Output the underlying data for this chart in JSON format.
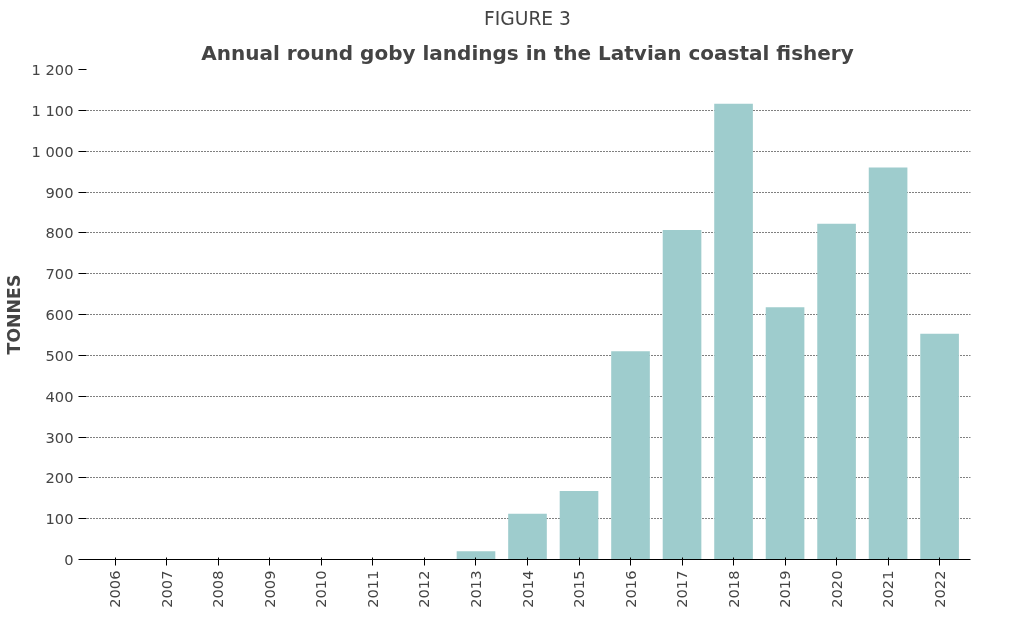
{
  "chart_data": {
    "type": "bar",
    "title": "FIGURE 3",
    "subtitle": "Annual round goby landings in the Latvian coastal fishery",
    "ylabel": "TONNES",
    "categories": [
      "2006",
      "2007",
      "2008",
      "2009",
      "2010",
      "2011",
      "2012",
      "2013",
      "2014",
      "2015",
      "2016",
      "2017",
      "2018",
      "2019",
      "2020",
      "2021",
      "2022"
    ],
    "values": [
      0,
      0,
      0,
      0,
      0,
      0,
      0,
      20,
      112,
      168,
      510,
      807,
      1116,
      618,
      822,
      960,
      553
    ],
    "color": "#9ecccd",
    "ylim": [
      0,
      1200
    ],
    "yticks": [
      0,
      100,
      200,
      300,
      400,
      500,
      600,
      700,
      800,
      900,
      {
        "value": 1000,
        "label": "1 000"
      },
      {
        "value": 1100,
        "label": "1 100"
      },
      {
        "value": 1200,
        "label": "1 200"
      }
    ],
    "grid": "y"
  }
}
